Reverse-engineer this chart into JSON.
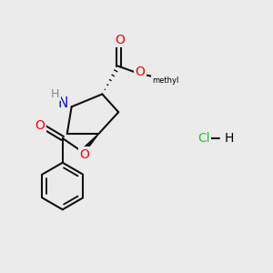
{
  "bg_color": "#ebebeb",
  "atom_colors": {
    "O": "#ff0000",
    "N": "#1010dd",
    "H": "#7a9090",
    "C": "#000000",
    "Cl": "#22cc22"
  },
  "bond_color": "#111111",
  "bond_width": 1.5
}
